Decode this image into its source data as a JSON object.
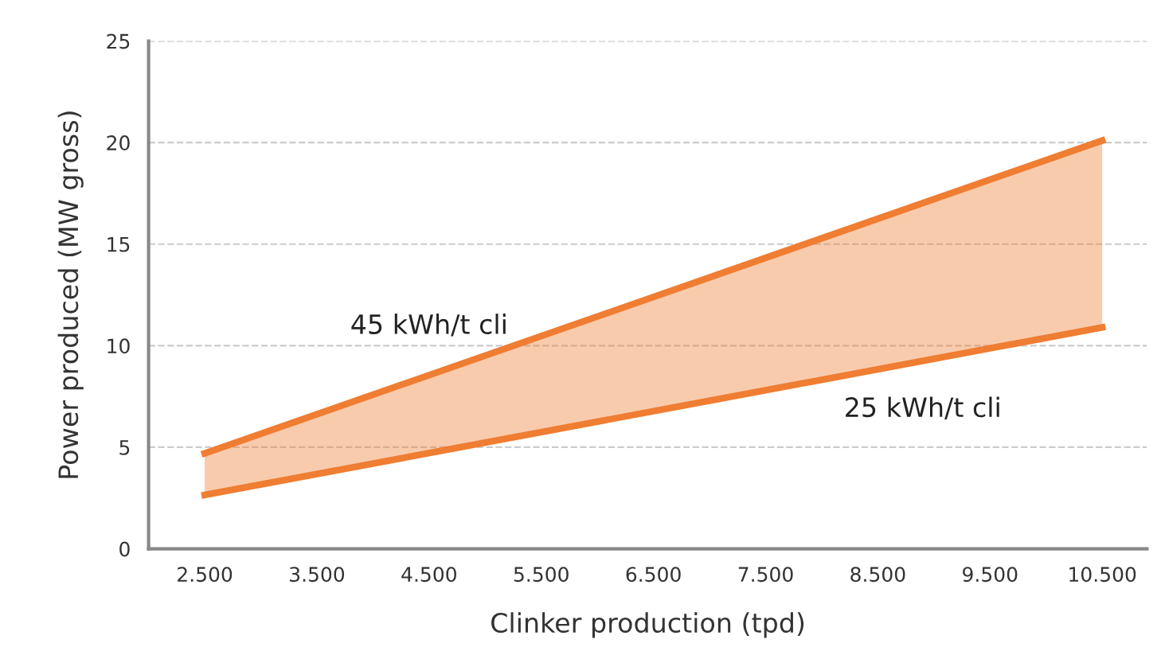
{
  "chart_data": {
    "type": "line",
    "xlabel": "Clinker production (tpd)",
    "ylabel": "Power produced (MW gross)",
    "x": [
      2500,
      10500
    ],
    "series": [
      {
        "name": "45 kWh/t cli",
        "color": "#ef7d32",
        "values": [
          4.7,
          20.1
        ],
        "lower": [
          2.65,
          10.9
        ],
        "upper": [
          4.7,
          20.1
        ]
      },
      {
        "name": "25 kWh/t cli",
        "color": "#ef7d32",
        "values": [
          2.65,
          10.9
        ]
      }
    ],
    "xlim": [
      2000,
      10900
    ],
    "ylim": [
      0,
      25
    ],
    "xticks": [
      {
        "value": 2500,
        "label": "2.500"
      },
      {
        "value": 3500,
        "label": "3.500"
      },
      {
        "value": 4500,
        "label": "4.500"
      },
      {
        "value": 5500,
        "label": "5.500"
      },
      {
        "value": 6500,
        "label": "6.500"
      },
      {
        "value": 7500,
        "label": "7.500"
      },
      {
        "value": 8500,
        "label": "8.500"
      },
      {
        "value": 9500,
        "label": "9.500"
      },
      {
        "value": 10500,
        "label": "10.500"
      }
    ],
    "yticks": [
      0,
      5,
      10,
      15,
      20,
      25
    ],
    "grid": "y",
    "legend": false,
    "marker": "none",
    "line_style": "solid"
  }
}
